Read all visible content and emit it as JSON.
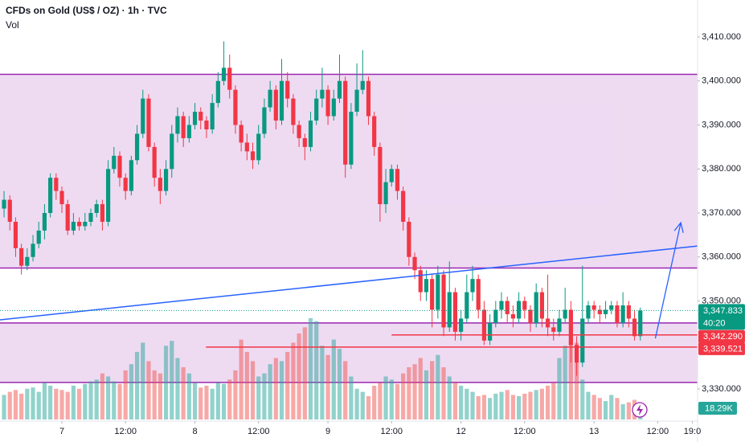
{
  "chart_data": {
    "type": "candlestick",
    "title": "CFDs on Gold (US$ / OZ) · 1h · TVC",
    "volume_title": "Vol",
    "x": [
      0,
      1,
      2,
      3,
      4,
      5,
      6,
      7,
      8,
      9,
      10,
      11,
      12,
      13,
      14,
      15,
      16,
      17,
      18,
      19,
      20,
      21,
      22,
      23,
      24,
      25,
      26,
      27,
      28,
      29,
      30,
      31,
      32,
      33,
      34,
      35,
      36,
      37,
      38,
      39,
      40,
      41,
      42,
      43,
      44,
      45,
      46,
      47,
      48,
      49,
      50,
      51,
      52,
      53,
      54,
      55,
      56,
      57,
      58,
      59,
      60,
      61,
      62,
      63,
      64,
      65,
      66,
      67,
      68,
      69,
      70,
      71,
      72,
      73,
      74,
      75,
      76,
      77,
      78,
      79,
      80,
      81,
      82,
      83,
      84,
      85,
      86,
      87,
      88,
      89,
      90,
      91,
      92,
      93,
      94,
      95,
      96,
      97,
      98,
      99,
      100,
      101,
      102,
      103,
      104,
      105,
      106,
      107,
      108,
      109,
      110
    ],
    "open": [
      3371,
      3373,
      3368,
      3362,
      3358,
      3360,
      3363,
      3366,
      3370,
      3378,
      3375,
      3372,
      3366,
      3368,
      3367,
      3368,
      3370,
      3372,
      3368,
      3380,
      3383,
      3378,
      3375,
      3382,
      3388,
      3396,
      3385,
      3378,
      3375,
      3380,
      3388,
      3392,
      3387,
      3390,
      3393,
      3391,
      3389,
      3395,
      3400,
      3403,
      3398,
      3390,
      3386,
      3384,
      3382,
      3388,
      3394,
      3398,
      3391,
      3400,
      3396,
      3390,
      3387,
      3385,
      3391,
      3396,
      3398,
      3392,
      3396,
      3400,
      3381,
      3393,
      3398,
      3400,
      3392,
      3385,
      3372,
      3377,
      3380,
      3375,
      3368,
      3360,
      3357,
      3352,
      3355,
      3348,
      3356,
      3344,
      3352,
      3343,
      3346,
      3352,
      3355,
      3348,
      3341,
      3345,
      3348,
      3350,
      3347,
      3346,
      3350,
      3348,
      3345,
      3352,
      3346,
      3344,
      3343,
      3346,
      3348,
      3340,
      3336,
      3346,
      3349,
      3348,
      3347,
      3348,
      3349,
      3345,
      3349,
      3346,
      3342
    ],
    "high": [
      3375,
      3374,
      3369,
      3363,
      3362,
      3365,
      3368,
      3372,
      3379,
      3379,
      3376,
      3373,
      3370,
      3369,
      3370,
      3371,
      3373,
      3373,
      3382,
      3385,
      3384,
      3379,
      3383,
      3390,
      3398,
      3397,
      3386,
      3380,
      3382,
      3390,
      3394,
      3393,
      3392,
      3395,
      3394,
      3392,
      3397,
      3402,
      3409,
      3406,
      3399,
      3391,
      3388,
      3386,
      3390,
      3396,
      3400,
      3399,
      3405,
      3402,
      3397,
      3391,
      3388,
      3393,
      3398,
      3403,
      3399,
      3398,
      3406,
      3401,
      3395,
      3404,
      3407,
      3401,
      3393,
      3386,
      3380,
      3381,
      3381,
      3376,
      3369,
      3361,
      3358,
      3357,
      3356,
      3358,
      3357,
      3359,
      3353,
      3348,
      3356,
      3358,
      3356,
      3350,
      3347,
      3350,
      3352,
      3351,
      3349,
      3352,
      3351,
      3349,
      3354,
      3353,
      3356,
      3346,
      3348,
      3353,
      3350,
      3342,
      3358,
      3350,
      3350,
      3349,
      3350,
      3350,
      3350,
      3352,
      3350,
      3348,
      3348.5
    ],
    "low": [
      3369,
      3366,
      3360,
      3356,
      3357,
      3359,
      3362,
      3364,
      3369,
      3373,
      3370,
      3365,
      3365,
      3366,
      3366,
      3367,
      3369,
      3366,
      3367,
      3379,
      3376,
      3373,
      3374,
      3381,
      3387,
      3384,
      3376,
      3372,
      3374,
      3378,
      3386,
      3385,
      3386,
      3389,
      3389,
      3387,
      3388,
      3394,
      3399,
      3396,
      3388,
      3384,
      3382,
      3380,
      3381,
      3387,
      3393,
      3389,
      3390,
      3394,
      3388,
      3385,
      3382,
      3384,
      3390,
      3394,
      3390,
      3391,
      3395,
      3378,
      3380,
      3392,
      3397,
      3390,
      3383,
      3368,
      3370,
      3376,
      3373,
      3366,
      3358,
      3355,
      3350,
      3350,
      3344,
      3346,
      3342,
      3343,
      3341,
      3341,
      3345,
      3350,
      3346,
      3340,
      3340,
      3344,
      3346,
      3345,
      3344,
      3345,
      3346,
      3343,
      3344,
      3344,
      3342,
      3341,
      3342,
      3345,
      3336,
      3333,
      3335,
      3345,
      3346,
      3345,
      3346,
      3347,
      3344,
      3344,
      3344,
      3341,
      3341
    ],
    "close": [
      3373,
      3368,
      3362,
      3358,
      3360,
      3363,
      3366,
      3370,
      3378,
      3375,
      3372,
      3366,
      3368,
      3367,
      3368,
      3370,
      3372,
      3368,
      3380,
      3383,
      3378,
      3375,
      3382,
      3388,
      3396,
      3385,
      3378,
      3375,
      3380,
      3388,
      3392,
      3387,
      3390,
      3393,
      3391,
      3389,
      3395,
      3400,
      3403,
      3398,
      3390,
      3386,
      3384,
      3382,
      3388,
      3394,
      3398,
      3391,
      3400,
      3396,
      3390,
      3387,
      3385,
      3391,
      3396,
      3398,
      3392,
      3396,
      3400,
      3381,
      3393,
      3398,
      3400,
      3392,
      3385,
      3372,
      3377,
      3380,
      3375,
      3368,
      3360,
      3357,
      3352,
      3355,
      3348,
      3356,
      3344,
      3352,
      3343,
      3346,
      3352,
      3355,
      3348,
      3341,
      3345,
      3348,
      3350,
      3347,
      3346,
      3350,
      3348,
      3345,
      3352,
      3346,
      3344,
      3343,
      3346,
      3348,
      3340,
      3336,
      3346,
      3349,
      3348,
      3347,
      3348,
      3349,
      3345,
      3349,
      3346,
      3342,
      3347.833
    ],
    "volume": [
      40000,
      45000,
      48000,
      42000,
      50000,
      52000,
      45000,
      60000,
      55000,
      50000,
      48000,
      45000,
      55000,
      50000,
      58000,
      62000,
      65000,
      75000,
      70000,
      62000,
      58000,
      80000,
      90000,
      110000,
      125000,
      95000,
      80000,
      75000,
      120000,
      128000,
      100000,
      85000,
      75000,
      60000,
      52000,
      55000,
      50000,
      60000,
      58000,
      65000,
      80000,
      130000,
      110000,
      95000,
      70000,
      75000,
      90000,
      100000,
      95000,
      110000,
      125000,
      140000,
      150000,
      165000,
      160000,
      120000,
      105000,
      130000,
      115000,
      95000,
      70000,
      50000,
      45000,
      38000,
      55000,
      60000,
      70000,
      65000,
      58000,
      75000,
      85000,
      90000,
      100000,
      80000,
      95000,
      105000,
      85000,
      70000,
      60000,
      55000,
      50000,
      45000,
      38000,
      40000,
      35000,
      42000,
      45000,
      48000,
      40000,
      38000,
      42000,
      45000,
      48000,
      50000,
      55000,
      60000,
      100000,
      120000,
      130000,
      125000,
      65000,
      45000,
      40000,
      35000,
      30000,
      40000,
      35000,
      25000,
      28000,
      32000,
      18290
    ],
    "volume_label": "18.29K",
    "up_color": "#089981",
    "down_color": "#f23645",
    "volume_up_color": "#26a69a",
    "volume_down_color": "#ef5350",
    "xlim": [
      -0.7,
      119.9
    ],
    "xticks": [
      {
        "value": 10,
        "label": "7"
      },
      {
        "value": 21,
        "label": "12:00"
      },
      {
        "value": 33,
        "label": "8"
      },
      {
        "value": 44,
        "label": "12:00"
      },
      {
        "value": 56,
        "label": "9"
      },
      {
        "value": 67,
        "label": "12:00"
      },
      {
        "value": 79,
        "label": "12"
      },
      {
        "value": 90,
        "label": "12:00"
      },
      {
        "value": 102,
        "label": "13"
      },
      {
        "value": 113,
        "label": "12:00"
      },
      {
        "value": 119,
        "label": "19:0"
      }
    ],
    "ylim": [
      3322.7,
      3418.4
    ],
    "yticks": [
      {
        "value": 3410,
        "label": "3,410.000"
      },
      {
        "value": 3400,
        "label": "3,400.000"
      },
      {
        "value": 3390,
        "label": "3,390.000"
      },
      {
        "value": 3380,
        "label": "3,380.000"
      },
      {
        "value": 3370,
        "label": "3,370.000"
      },
      {
        "value": 3360,
        "label": "3,360.000"
      },
      {
        "value": 3350,
        "label": "3,350.000"
      },
      {
        "value": 3330,
        "label": "3,330.000"
      }
    ],
    "volume_lim": [
      0,
      170000
    ],
    "last_price": {
      "value": 3347.833,
      "label": "3,347.833"
    },
    "countdown": "40:20",
    "levels": [
      {
        "value": 3342.29,
        "label": "3,342.290",
        "from": 67
      },
      {
        "value": 3339.521,
        "label": "3,339.521",
        "from": 34.9
      }
    ],
    "zones": [
      {
        "from": 3357.5,
        "to": 3401.5
      },
      {
        "from": 3331.5,
        "to": 3345
      }
    ],
    "zone_color": "#9c27b0",
    "trendline": {
      "x": [
        -0.7,
        119.9
      ],
      "y": [
        3345.7,
        3362.5
      ],
      "color": "#2962ff"
    },
    "arrow": {
      "x": [
        112.6,
        117
      ],
      "y": [
        3341.5,
        3367.8
      ],
      "color": "#2962ff"
    }
  }
}
